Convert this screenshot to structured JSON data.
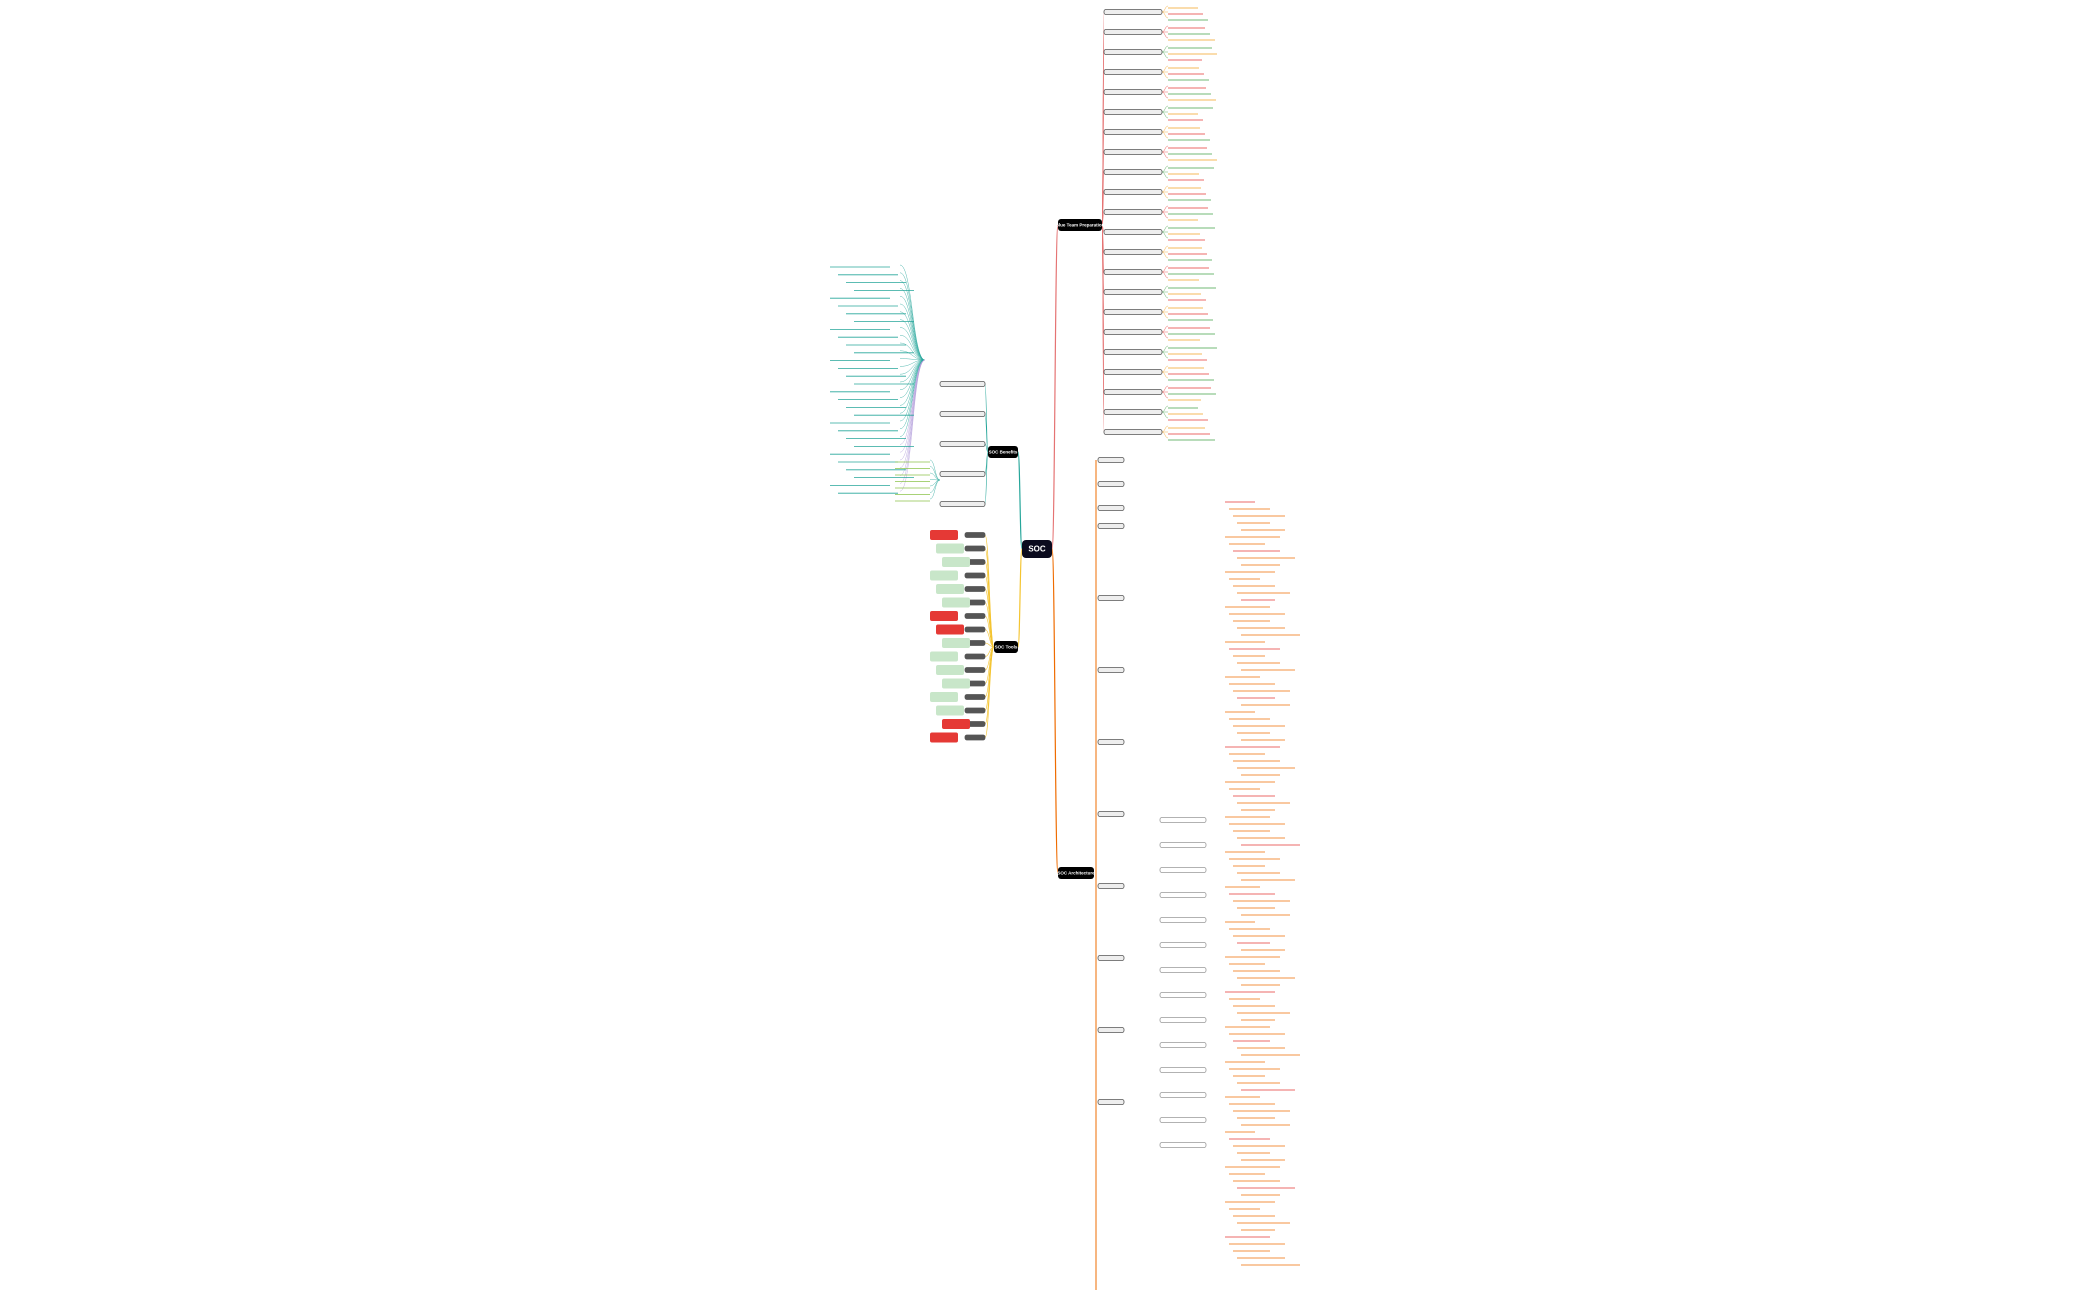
{
  "mindmap": {
    "root": "SOC",
    "branches": [
      {
        "label": "Blue Team Preparation"
      },
      {
        "label": "SOC Benefits"
      },
      {
        "label": "SOC Tools"
      },
      {
        "label": "SOC Architecture"
      }
    ]
  }
}
